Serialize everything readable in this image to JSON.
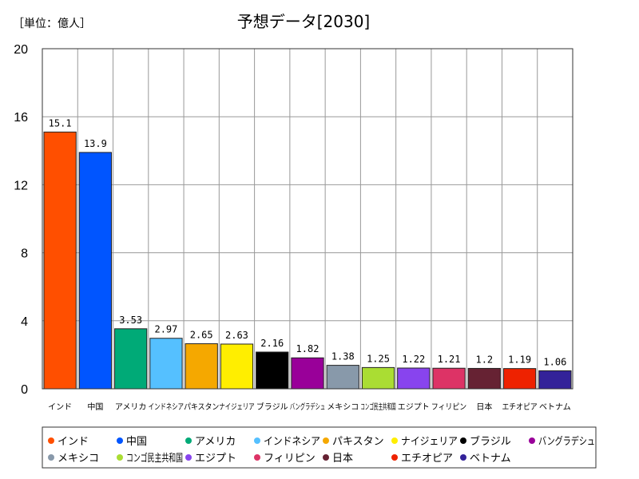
{
  "chart_data": {
    "type": "bar",
    "title": "予想データ[2030]",
    "unit_label": "［単位：億人］",
    "categories": [
      "インド",
      "中国",
      "アメリカ",
      "インドネシア",
      "パキスタン",
      "ナイジェリア",
      "ブラジル",
      "バングラデシュ",
      "メキシコ",
      "コンゴ民主共和国",
      "エジプト",
      "フィリピン",
      "日本",
      "エチオピア",
      "ベトナム"
    ],
    "values": [
      15.1,
      13.9,
      3.53,
      2.97,
      2.65,
      2.63,
      2.16,
      1.82,
      1.38,
      1.25,
      1.22,
      1.21,
      1.2,
      1.19,
      1.06
    ],
    "value_labels": [
      "15.1",
      "13.9",
      "3.53",
      "2.97",
      "2.65",
      "2.63",
      "2.16",
      "1.82",
      "1.38",
      "1.25",
      "1.22",
      "1.21",
      "1.2",
      "1.19",
      "1.06"
    ],
    "colors": [
      "#ff4f00",
      "#0055ff",
      "#00aa77",
      "#55c0ff",
      "#f5a800",
      "#ffee00",
      "#000000",
      "#990099",
      "#8899aa",
      "#aadd33",
      "#8844ee",
      "#dd3366",
      "#662233",
      "#ee2200",
      "#332299"
    ],
    "ylim": [
      0,
      20
    ],
    "yticks": [
      "0",
      "4",
      "8",
      "12",
      "16",
      "20"
    ],
    "grid": true,
    "legend_position": "bottom"
  }
}
